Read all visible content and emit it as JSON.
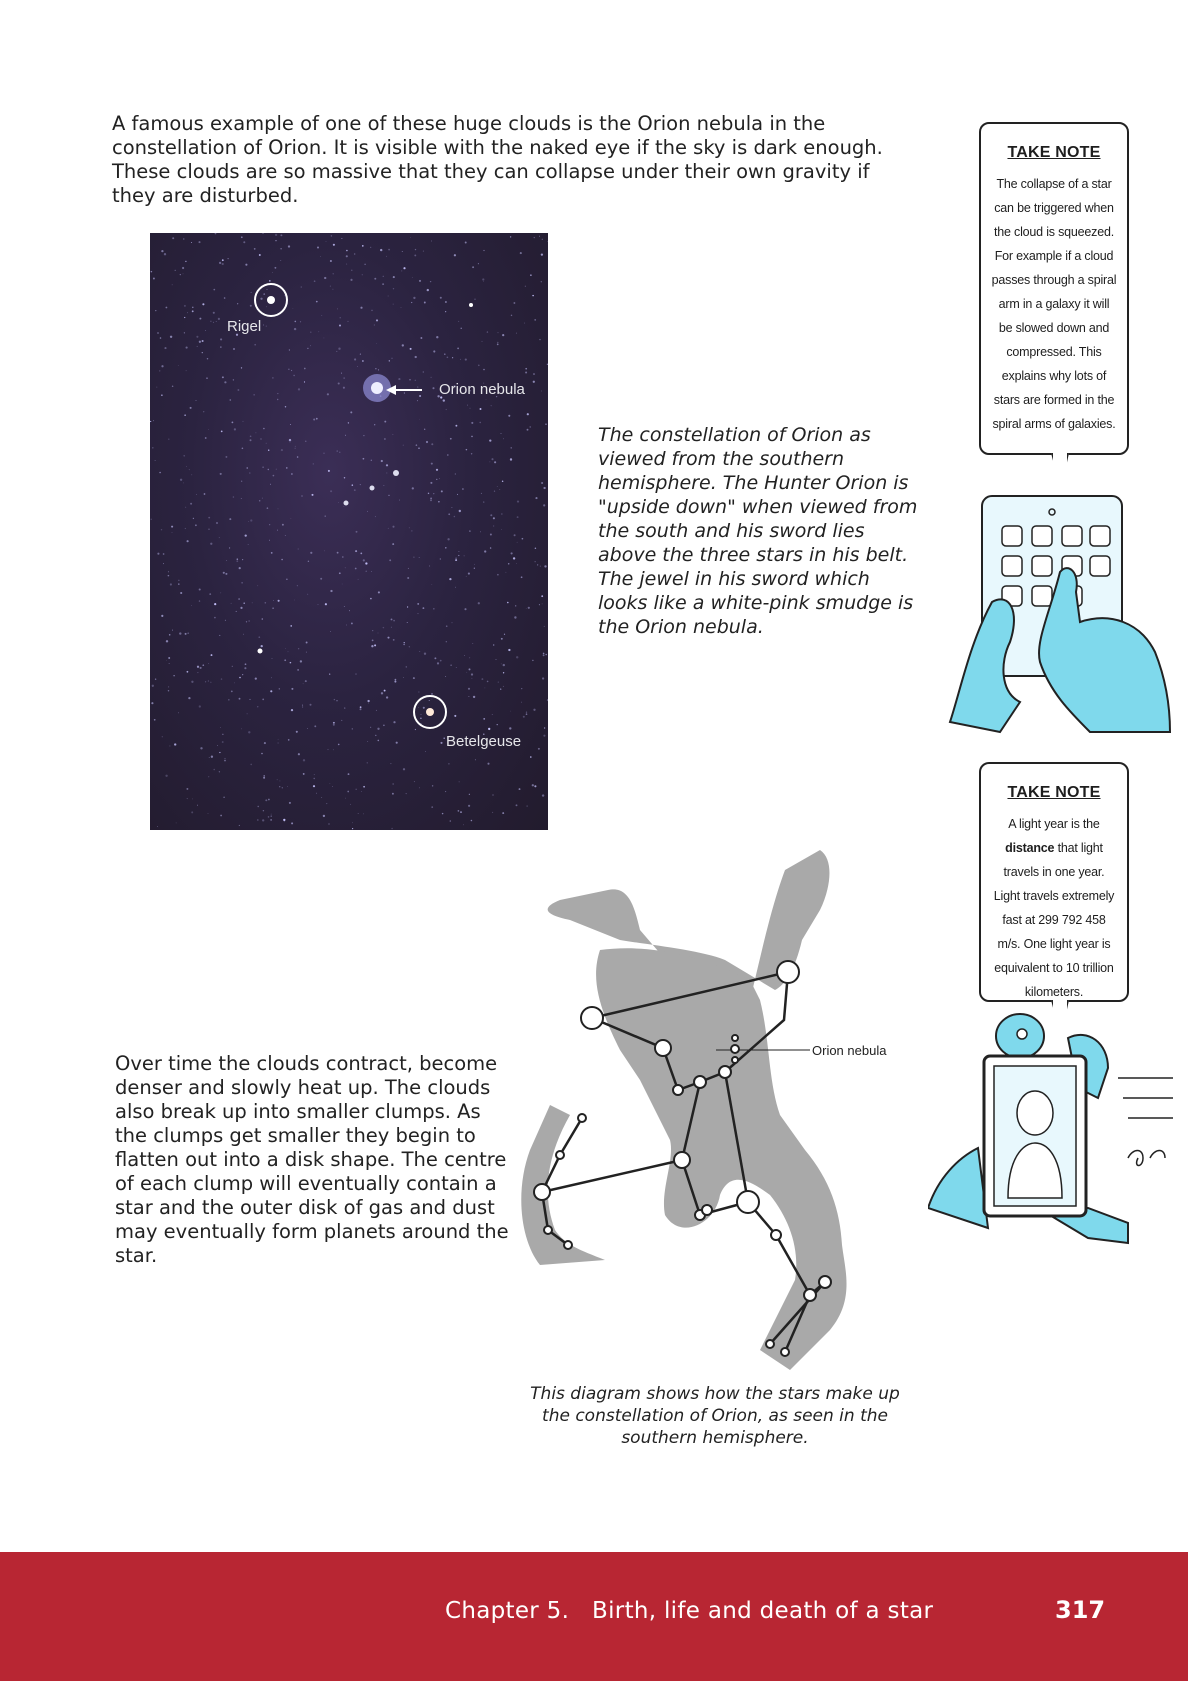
{
  "intro": {
    "text": "A famous example of one of these huge clouds is the Orion nebula in the constellation of Orion. It is visible with the naked eye if the sky is dark enough. These clouds are so massive that they can collapse under their own gravity if they are disturbed."
  },
  "photo": {
    "labels": {
      "rigel": "Rigel",
      "nebula": "Orion nebula",
      "betelgeuse": "Betelgeuse"
    }
  },
  "caption_photo": "The constellation of Orion as viewed from the southern hemisphere. The Hunter Orion is \"upside down\" when viewed from the south and his sword lies above the three stars in his belt. The jewel in his sword which looks like a white-pink smudge is the Orion nebula.",
  "note1": {
    "title": "TAKE NOTE",
    "body": "The collapse of a star can be triggered when the cloud is squeezed. For example if a cloud passes through a spiral arm in a galaxy it will be slowed down and compressed. This explains why lots of stars are formed in the spiral arms of galaxies."
  },
  "note2": {
    "title": "TAKE NOTE",
    "body_before": "A light year is the ",
    "body_bold": "distance",
    "body_after": " that light travels in one year. Light travels extremely fast at 299 792 458 m/s. One light year is equivalent to 10 trillion kilometers."
  },
  "para2": {
    "text": "Over time the clouds contract, become denser and slowly heat up. The clouds also break up into smaller clumps. As the clumps get smaller they begin to flatten out into a disk shape. The centre of each clump will eventually contain a star and the outer disk of gas and dust may eventually form planets around the star."
  },
  "diagram": {
    "nebula_label": "Orion nebula"
  },
  "caption_diagram": "This diagram shows how the stars make up the constellation of Orion, as seen in the southern hemisphere.",
  "footer": {
    "chapter": "Chapter 5.   Birth, life and death of a star",
    "page": "317"
  },
  "colors": {
    "footer_bg": "#b82633",
    "silhouette": "#a9a9a9",
    "illustration_cyan": "#7fd9ec"
  }
}
